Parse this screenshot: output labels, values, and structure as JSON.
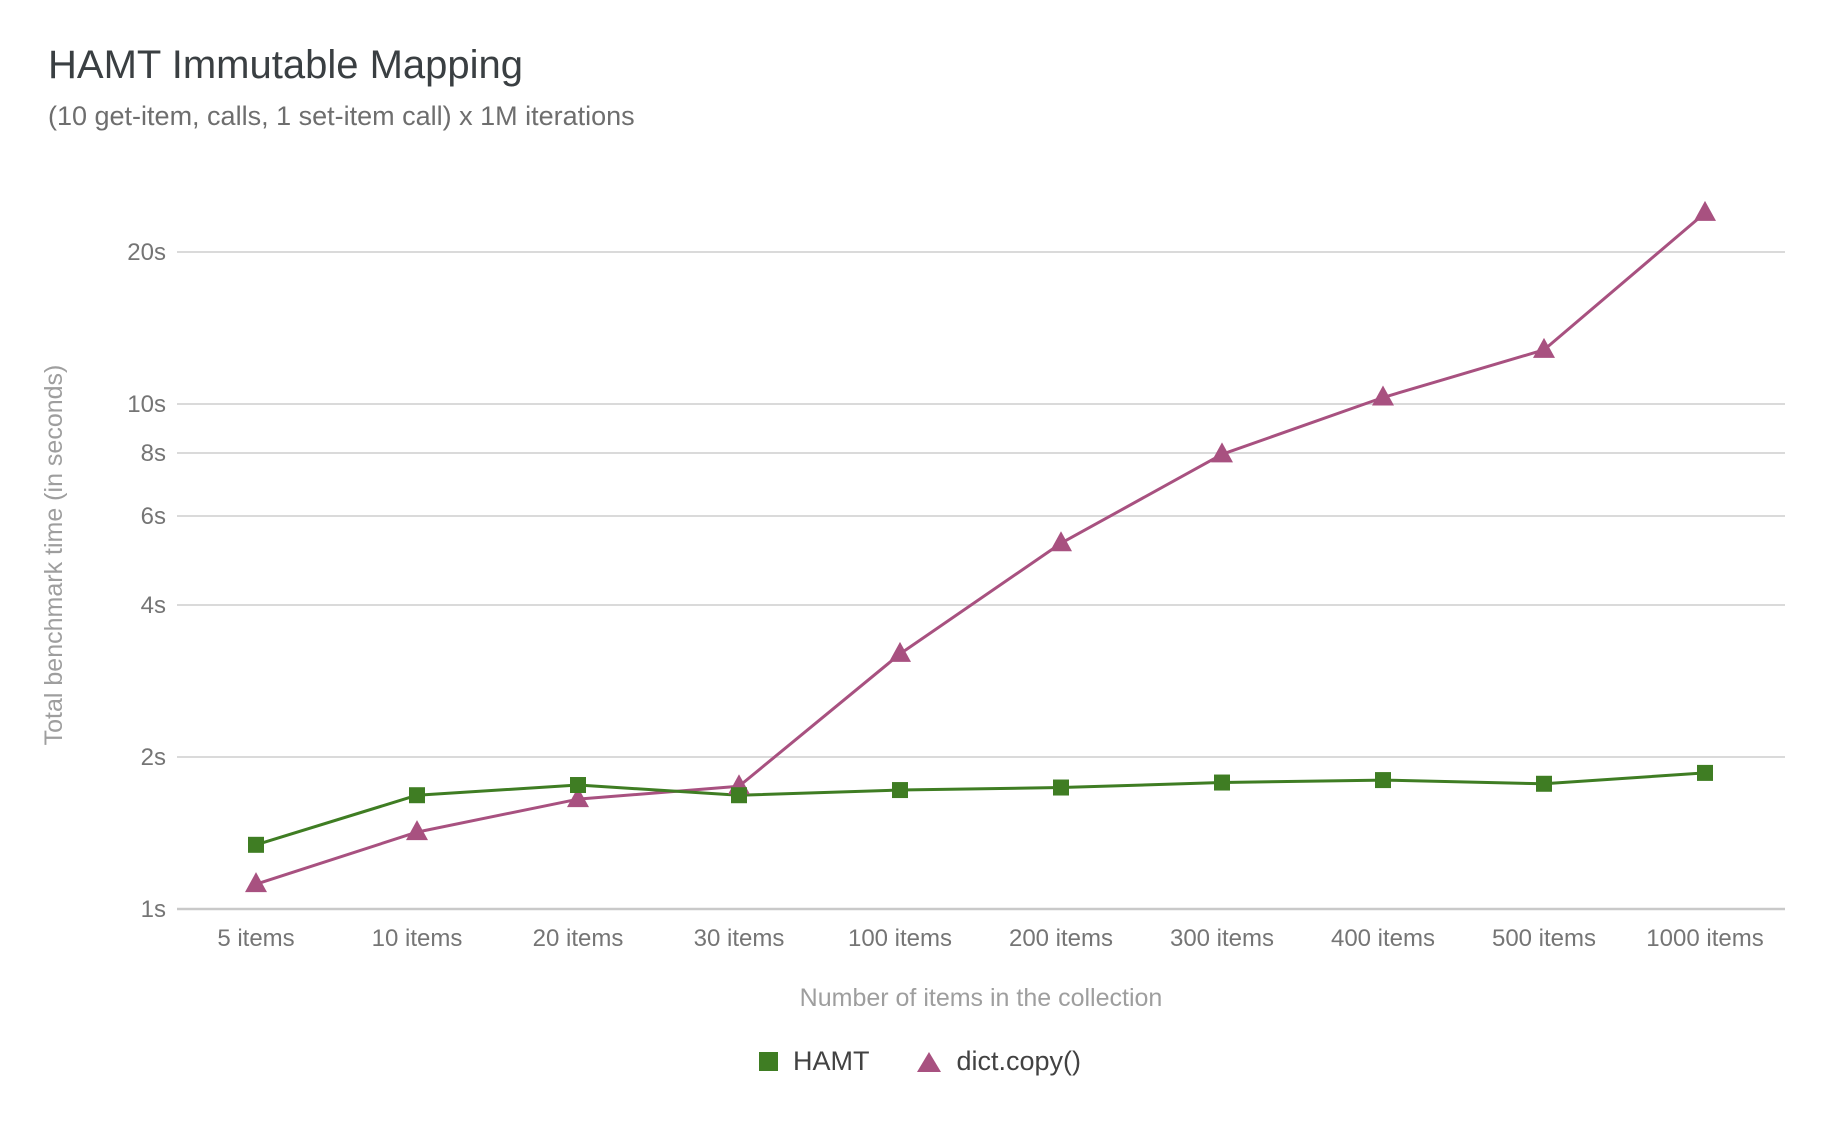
{
  "header": {
    "title": "HAMT Immutable Mapping",
    "subtitle": "(10 get-item, calls, 1 set-item call) x 1M iterations"
  },
  "chart_data": {
    "type": "line",
    "title": "HAMT Immutable Mapping",
    "subtitle": "(10 get-item, calls, 1 set-item call) x 1M iterations",
    "xlabel": "Number of items in the collection",
    "ylabel": "Total benchmark time (in seconds)",
    "x_scale": "categorical",
    "y_scale": "log",
    "grid": true,
    "legend_position": "bottom-center",
    "categories": [
      "5 items",
      "10 items",
      "20 items",
      "30 items",
      "100 items",
      "200 items",
      "300 items",
      "400 items",
      "500 items",
      "1000 items"
    ],
    "y_ticks": [
      {
        "value": 1,
        "label": "1s"
      },
      {
        "value": 2,
        "label": "2s"
      },
      {
        "value": 4,
        "label": "4s"
      },
      {
        "value": 6,
        "label": "6s"
      },
      {
        "value": 8,
        "label": "8s"
      },
      {
        "value": 10,
        "label": "10s"
      },
      {
        "value": 20,
        "label": "20s"
      }
    ],
    "ylim": [
      1,
      25
    ],
    "series": [
      {
        "name": "HAMT",
        "marker": "square",
        "color": "#3f7d23",
        "values": [
          1.34,
          1.68,
          1.76,
          1.68,
          1.72,
          1.74,
          1.78,
          1.8,
          1.77,
          1.86
        ]
      },
      {
        "name": "dict.copy()",
        "marker": "triangle",
        "color": "#a85180",
        "values": [
          1.12,
          1.42,
          1.65,
          1.75,
          3.2,
          5.3,
          7.95,
          10.3,
          12.8,
          23.9
        ]
      }
    ]
  },
  "colors": {
    "title": "#3a3f42",
    "subtitle": "#6e6e6e",
    "tick_label": "#757575",
    "axis_title": "#9e9e9e",
    "gridline": "#dadada",
    "baseline": "#c9c9c9",
    "legend_text": "#424242",
    "background": "#ffffff"
  }
}
